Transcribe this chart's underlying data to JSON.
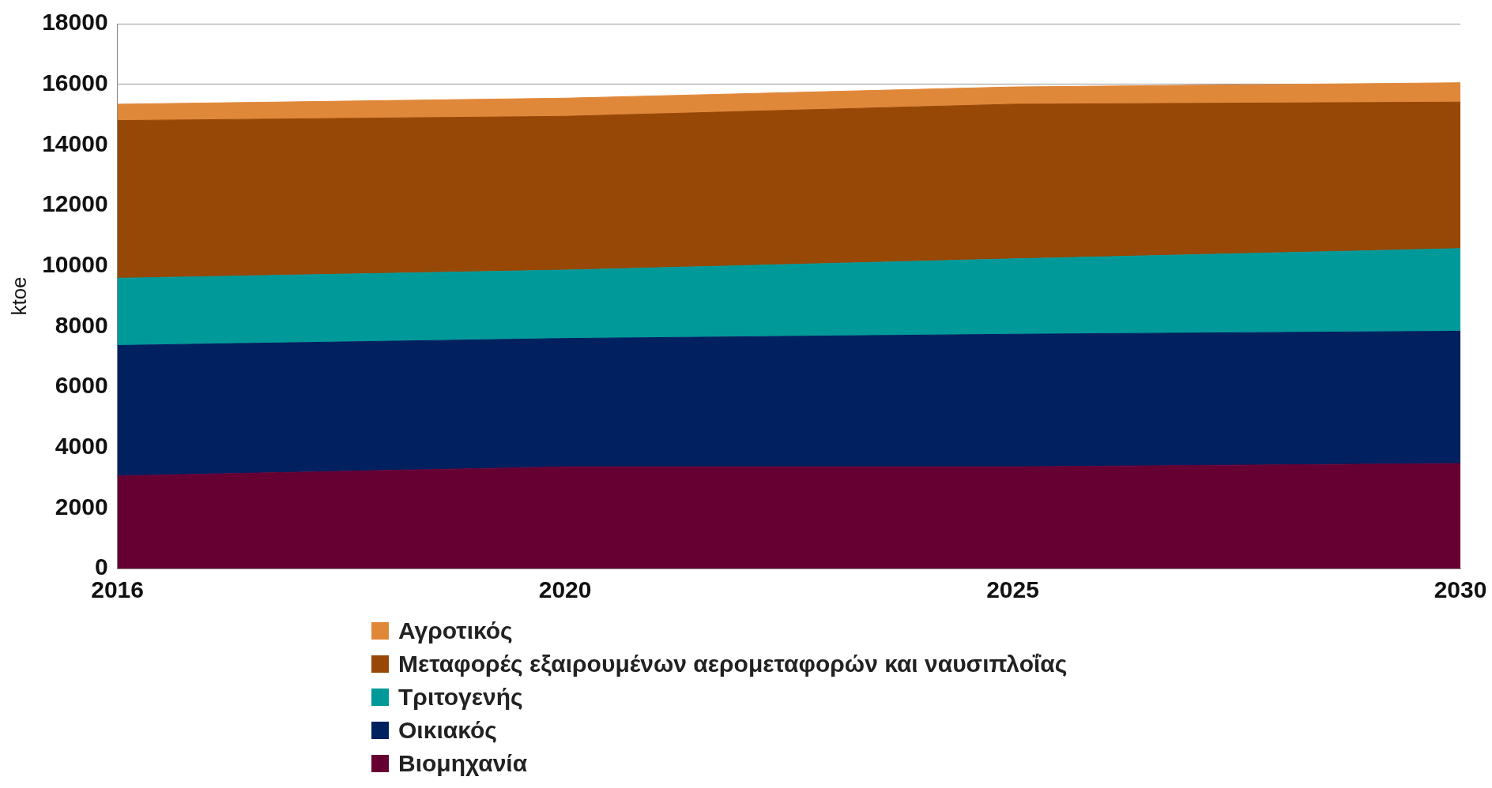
{
  "chart_data": {
    "type": "area",
    "stacked": true,
    "ylabel": "ktoe",
    "categories": [
      "2016",
      "2020",
      "2025",
      "2030"
    ],
    "series": [
      {
        "name": "Βιομηχανία",
        "color": "#660033",
        "values": [
          3060,
          3360,
          3360,
          3470
        ]
      },
      {
        "name": "Οικιακός",
        "color": "#002060",
        "values": [
          4310,
          4240,
          4380,
          4370
        ]
      },
      {
        "name": "Τριτογενής",
        "color": "#009999",
        "values": [
          2220,
          2260,
          2490,
          2730
        ]
      },
      {
        "name": "Μεταφορές εξαιρουμένων αερομεταφορών και ναυσιπλοΐας",
        "color": "#974706",
        "values": [
          5210,
          5080,
          5110,
          4840
        ]
      },
      {
        "name": "Αγροτικός",
        "color": "#e0883a",
        "values": [
          540,
          600,
          570,
          640
        ]
      }
    ],
    "ylim": [
      0,
      18000
    ],
    "yticks": [
      0,
      2000,
      4000,
      6000,
      8000,
      10000,
      12000,
      14000,
      16000,
      18000
    ],
    "grid": "y",
    "legend": "bottom"
  }
}
